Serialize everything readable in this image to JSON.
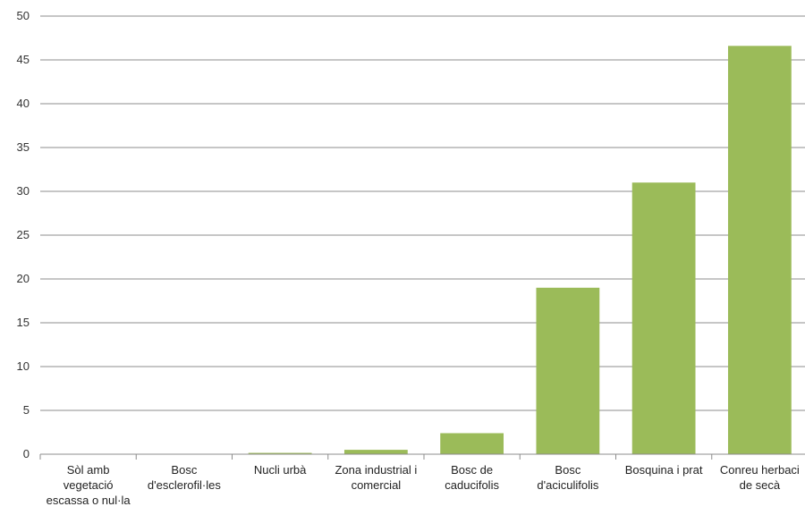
{
  "chart_data": {
    "type": "bar",
    "title": "",
    "xlabel": "",
    "ylabel": "",
    "categories": [
      [
        "Sòl amb",
        "vegetació",
        "escassa o nul·la"
      ],
      [
        "Bosc",
        "d'esclerofil·les"
      ],
      [
        "Nucli urbà"
      ],
      [
        "Zona industrial i",
        "comercial"
      ],
      [
        "Bosc de",
        "caducifolis"
      ],
      [
        "Bosc",
        "d'aciculifolis"
      ],
      [
        "Bosquina i prat"
      ],
      [
        "Conreu herbaci",
        "de secà"
      ]
    ],
    "values": [
      0,
      0,
      0.15,
      0.5,
      2.4,
      19,
      31,
      46.6
    ],
    "ylim": [
      0,
      50
    ],
    "yticks": [
      "0",
      "5",
      "10",
      "15",
      "20",
      "25",
      "30",
      "35",
      "40",
      "45",
      "50"
    ],
    "grid": true,
    "legend": "none",
    "bar_color": "#9bbb59"
  }
}
